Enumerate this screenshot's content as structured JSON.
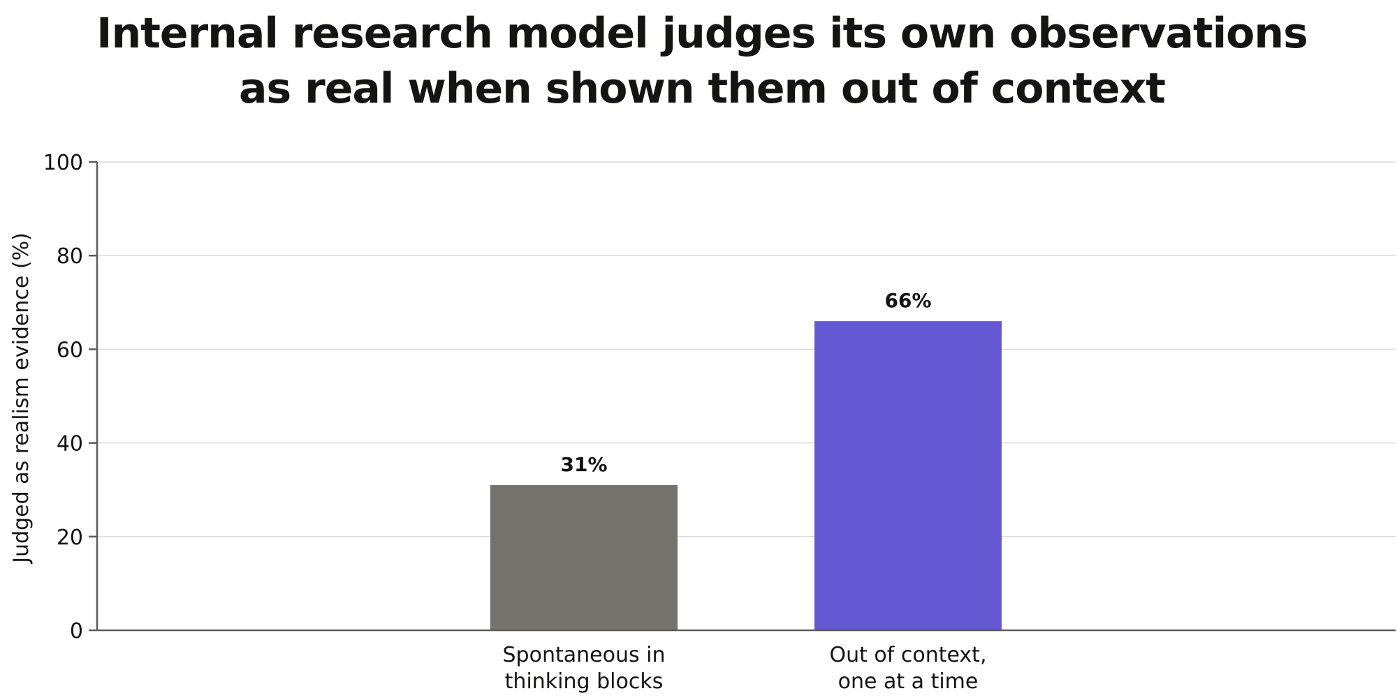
{
  "chart_data": {
    "type": "bar",
    "title_lines": [
      "Internal research model judges its own observations",
      "as real when shown them out of context"
    ],
    "xlabel": "",
    "ylabel": "Judged as realism evidence (%)",
    "ylim": [
      0,
      100
    ],
    "yticks": [
      0,
      20,
      40,
      60,
      80,
      100
    ],
    "grid": true,
    "categories": [
      [
        "Spontaneous in",
        "thinking blocks"
      ],
      [
        "Out of context,",
        "one at a time"
      ]
    ],
    "values": [
      31,
      66
    ],
    "value_labels": [
      "31%",
      "66%"
    ],
    "colors": [
      "#73726c",
      "#6558d3"
    ]
  }
}
